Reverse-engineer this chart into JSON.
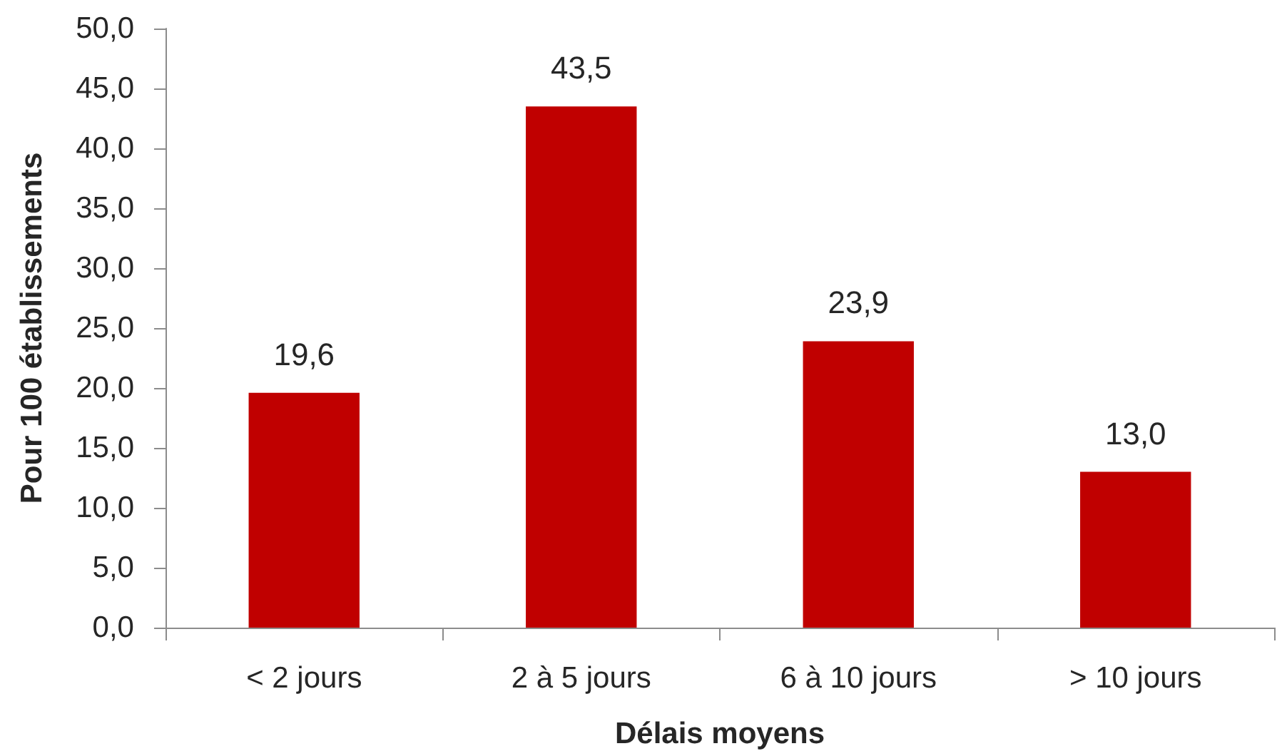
{
  "chart_data": {
    "type": "bar",
    "xlabel": "Délais moyens",
    "ylabel": "Pour 100 établissements",
    "categories": [
      "< 2 jours",
      "2 à 5 jours",
      "6 à 10 jours",
      "> 10 jours"
    ],
    "values": [
      19.6,
      43.5,
      23.9,
      13.0
    ],
    "color": "#c00000",
    "value_labels": [
      "19,6",
      "43,5",
      "23,9",
      "13,0"
    ],
    "ylim": [
      0,
      50
    ],
    "yticks": [
      {
        "value": 0,
        "label": "0,0"
      },
      {
        "value": 5,
        "label": "5,0"
      },
      {
        "value": 10,
        "label": "10,0"
      },
      {
        "value": 15,
        "label": "15,0"
      },
      {
        "value": 20,
        "label": "20,0"
      },
      {
        "value": 25,
        "label": "25,0"
      },
      {
        "value": 30,
        "label": "30,0"
      },
      {
        "value": 35,
        "label": "35,0"
      },
      {
        "value": 40,
        "label": "40,0"
      },
      {
        "value": 45,
        "label": "45,0"
      },
      {
        "value": 50,
        "label": "50,0"
      }
    ],
    "grid": false
  }
}
